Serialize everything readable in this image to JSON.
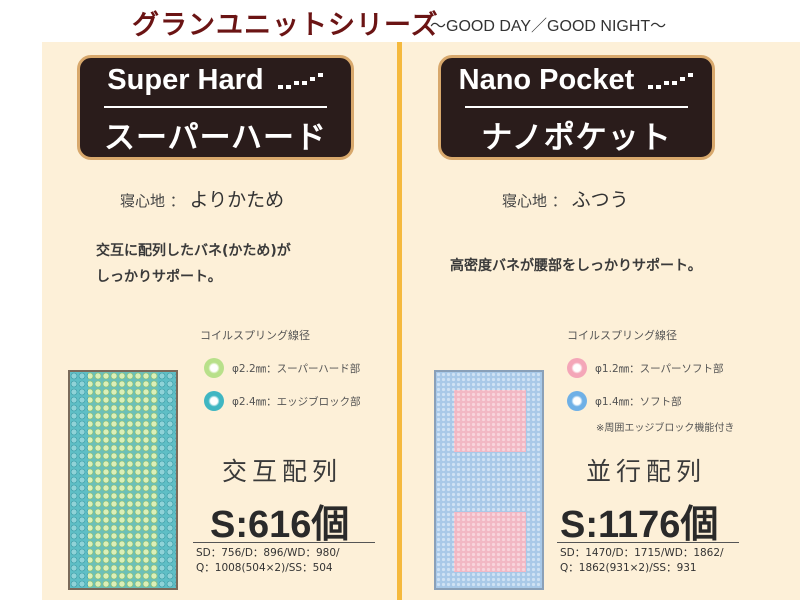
{
  "header": {
    "title": "グランユニットシリーズ",
    "subtitle": "～GOOD DAY／GOOD NIGHT～"
  },
  "left": {
    "badge_en": "Super Hard",
    "badge_ja": "スーパーハード",
    "feel_label": "寝心地 ：",
    "feel_value": "よりかため",
    "desc_lines": [
      "交互に配列したバネ(かため)が",
      "しっかりサポート。"
    ],
    "coil_title": "コイルスプリング線径",
    "coils": [
      {
        "label": "φ2.2㎜：スーパーハード部",
        "color": "#b8e08a"
      },
      {
        "label": "φ2.4㎜：エッジブロック部",
        "color": "#3fb6c2"
      }
    ],
    "arrangement": "交互配列",
    "count": "S:616個",
    "sizes": [
      "SD：756/D：896/WD：980/",
      "Q：1008(504×2)/SS：504"
    ],
    "mattress_colors": {
      "edge": "#5fbfc6",
      "center": "#c9e6a0"
    }
  },
  "right": {
    "badge_en": "Nano Pocket",
    "badge_ja": "ナノポケット",
    "feel_label": "寝心地 ：",
    "feel_value": "ふつう",
    "desc_lines": [
      "高密度バネが腰部をしっかりサポート。"
    ],
    "coil_title": "コイルスプリング線径",
    "coils": [
      {
        "label": "φ1.2㎜：スーパーソフト部",
        "color": "#f4a6b8"
      },
      {
        "label": "φ1.4㎜：ソフト部",
        "color": "#6fb0e6"
      }
    ],
    "note": "※周囲エッジブロック機能付き",
    "arrangement": "並行配列",
    "count": "S:1176個",
    "sizes": [
      "SD：1470/D：1715/WD：1862/",
      "Q：1862(931×2)/SS：931"
    ],
    "mattress_colors": {
      "base": "#a9c9e8",
      "soft": "#f2b8c4"
    }
  }
}
